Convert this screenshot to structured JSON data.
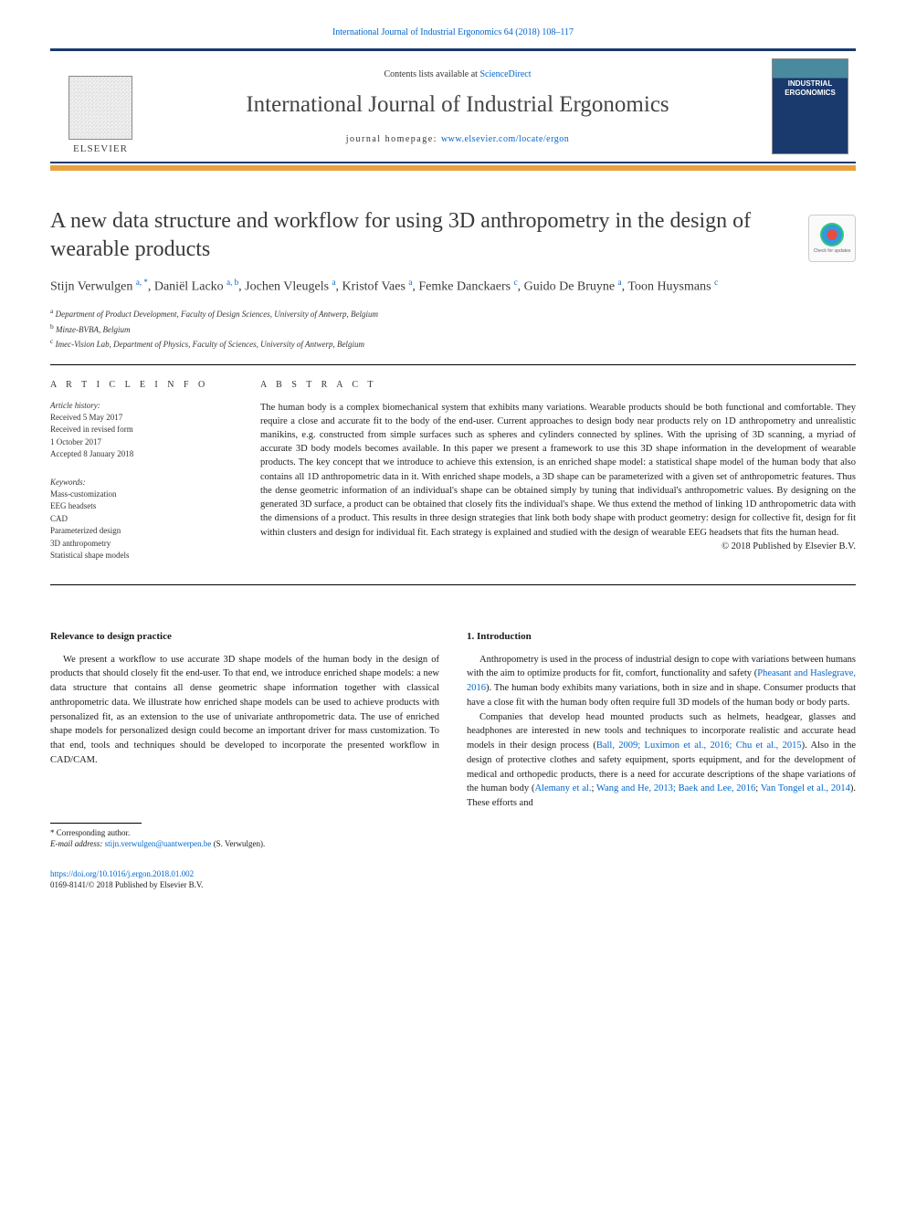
{
  "citation": "International Journal of Industrial Ergonomics 64 (2018) 108–117",
  "masthead": {
    "publisher_name": "ELSEVIER",
    "contents_prefix": "Contents lists available at ",
    "contents_link": "ScienceDirect",
    "journal_title": "International Journal of Industrial Ergonomics",
    "homepage_prefix": "journal homepage: ",
    "homepage_link": "www.elsevier.com/locate/ergon",
    "cover_line1": "INDUSTRIAL",
    "cover_line2": "ERGONOMICS"
  },
  "article": {
    "title": "A new data structure and workflow for using 3D anthropometry in the design of wearable products",
    "check_updates_label": "Check for updates",
    "authors_html": "Stijn Verwulgen <sup>a, *</sup>, Daniël Lacko <sup>a, b</sup>, Jochen Vleugels <sup>a</sup>, Kristof Vaes <sup>a</sup>, Femke Danckaers <sup>c</sup>, Guido De Bruyne <sup>a</sup>, Toon Huysmans <sup>c</sup>",
    "affiliations": [
      {
        "sup": "a",
        "text": "Department of Product Development, Faculty of Design Sciences, University of Antwerp, Belgium"
      },
      {
        "sup": "b",
        "text": "Minze-BVBA, Belgium"
      },
      {
        "sup": "c",
        "text": "Imec-Vision Lab, Department of Physics, Faculty of Sciences, University of Antwerp, Belgium"
      }
    ]
  },
  "info": {
    "heading": "A R T I C L E   I N F O",
    "history_label": "Article history:",
    "history": [
      "Received 5 May 2017",
      "Received in revised form",
      "1 October 2017",
      "Accepted 8 January 2018"
    ],
    "keywords_label": "Keywords:",
    "keywords": [
      "Mass-customization",
      "EEG headsets",
      "CAD",
      "Parameterized design",
      "3D anthropometry",
      "Statistical shape models"
    ]
  },
  "abstract": {
    "heading": "A B S T R A C T",
    "text": "The human body is a complex biomechanical system that exhibits many variations. Wearable products should be both functional and comfortable. They require a close and accurate fit to the body of the end-user. Current approaches to design body near products rely on 1D anthropometry and unrealistic manikins, e.g. constructed from simple surfaces such as spheres and cylinders connected by splines. With the uprising of 3D scanning, a myriad of accurate 3D body models becomes available. In this paper we present a framework to use this 3D shape information in the development of wearable products. The key concept that we introduce to achieve this extension, is an enriched shape model: a statistical shape model of the human body that also contains all 1D anthropometric data in it. With enriched shape models, a 3D shape can be parameterized with a given set of anthropometric features. Thus the dense geometric information of an individual's shape can be obtained simply by tuning that individual's anthropometric values. By designing on the generated 3D surface, a product can be obtained that closely fits the individual's shape. We thus extend the method of linking 1D anthropometric data with the dimensions of a product. This results in three design strategies that link both body shape with product geometry: design for collective fit, design for fit within clusters and design for individual fit. Each strategy is explained and studied with the design of wearable EEG headsets that fits the human head.",
    "copyright": "© 2018 Published by Elsevier B.V."
  },
  "body": {
    "left": {
      "heading": "Relevance to design practice",
      "text": "We present a workflow to use accurate 3D shape models of the human body in the design of products that should closely fit the end-user. To that end, we introduce enriched shape models: a new data structure that contains all dense geometric shape information together with classical anthropometric data. We illustrate how enriched shape models can be used to achieve products with personalized fit, as an extension to the use of univariate anthropometric data. The use of enriched shape models for personalized design could become an important driver for mass customization. To that end, tools and techniques should be developed to incorporate the presented workflow in CAD/CAM."
    },
    "right": {
      "heading": "1. Introduction",
      "p1_pre": "Anthropometry is used in the process of industrial design to cope with variations between humans with the aim to optimize products for fit, comfort, functionality and safety (",
      "p1_cite1": "Pheasant and Haslegrave, 2016",
      "p1_post": "). The human body exhibits many variations, both in size and in shape. Consumer products that have a close fit with the human body often require full 3D models of the human body or body parts.",
      "p2_pre": "Companies that develop head mounted products such as helmets, headgear, glasses and headphones are interested in new tools and techniques to incorporate realistic and accurate head models in their design process (",
      "p2_cite1": "Ball, 2009; Luximon et al., 2016; Chu et al., 2015",
      "p2_mid1": "). Also in the design of protective clothes and safety equipment, sports equipment, and for the development of medical and orthopedic products, there is a need for accurate descriptions of the shape variations of the human body (",
      "p2_cite2": "Alemany et al.",
      "p2_sep1": "; ",
      "p2_cite3": "Wang and He, 2013; Baek and Lee, 2016",
      "p2_sep2": "; ",
      "p2_cite4": "Van Tongel et al., 2014",
      "p2_post": "). These efforts and"
    }
  },
  "footnote": {
    "corr": "* Corresponding author.",
    "email_label": "E-mail address: ",
    "email": "stijn.verwulgen@uantwerpen.be",
    "email_paren": " (S. Verwulgen)."
  },
  "footer": {
    "doi": "https://doi.org/10.1016/j.ergon.2018.01.002",
    "issn_line": "0169-8141/© 2018 Published by Elsevier B.V."
  },
  "colors": {
    "accent_bar": "#e8a23d",
    "rule": "#1a3a6e",
    "link": "#0066cc"
  }
}
